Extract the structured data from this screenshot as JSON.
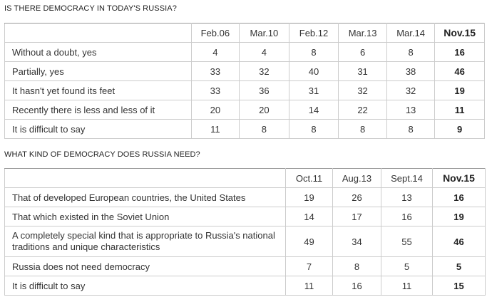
{
  "chart_data": [
    {
      "type": "table",
      "title": "IS THERE DEMOCRACY IN TODAY'S RUSSIA?",
      "columns": [
        "Feb.06",
        "Mar.10",
        "Feb.12",
        "Mar.13",
        "Mar.14",
        "Nov.15"
      ],
      "rows": [
        {
          "label": "Without a doubt, yes",
          "values": [
            "4",
            "4",
            "8",
            "6",
            "8",
            "16"
          ]
        },
        {
          "label": "Partially, yes",
          "values": [
            "33",
            "32",
            "40",
            "31",
            "38",
            "46"
          ]
        },
        {
          "label": "It hasn't yet found its feet",
          "values": [
            "33",
            "36",
            "31",
            "32",
            "32",
            "19"
          ]
        },
        {
          "label": "Recently there is less and less of it",
          "values": [
            "20",
            "20",
            "14",
            "22",
            "13",
            "11"
          ]
        },
        {
          "label": "It is difficult to say",
          "values": [
            "11",
            "8",
            "8",
            "8",
            "8",
            "9"
          ]
        }
      ]
    },
    {
      "type": "table",
      "title": "WHAT KIND OF DEMOCRACY DOES RUSSIA NEED?",
      "columns": [
        "Oct.11",
        "Aug.13",
        "Sept.14",
        "Nov.15"
      ],
      "rows": [
        {
          "label": "That of developed European countries, the United States",
          "values": [
            "19",
            "26",
            "13",
            "16"
          ]
        },
        {
          "label": "That which existed in the Soviet Union",
          "values": [
            "14",
            "17",
            "16",
            "19"
          ]
        },
        {
          "label": "A completely special kind that is appropriate to Russia's national traditions and unique characteristics",
          "values": [
            "49",
            "34",
            "55",
            "46"
          ]
        },
        {
          "label": "Russia does not need democracy",
          "values": [
            "7",
            "8",
            "5",
            "5"
          ]
        },
        {
          "label": "It is difficult to say",
          "values": [
            "11",
            "16",
            "11",
            "15"
          ]
        }
      ]
    }
  ]
}
